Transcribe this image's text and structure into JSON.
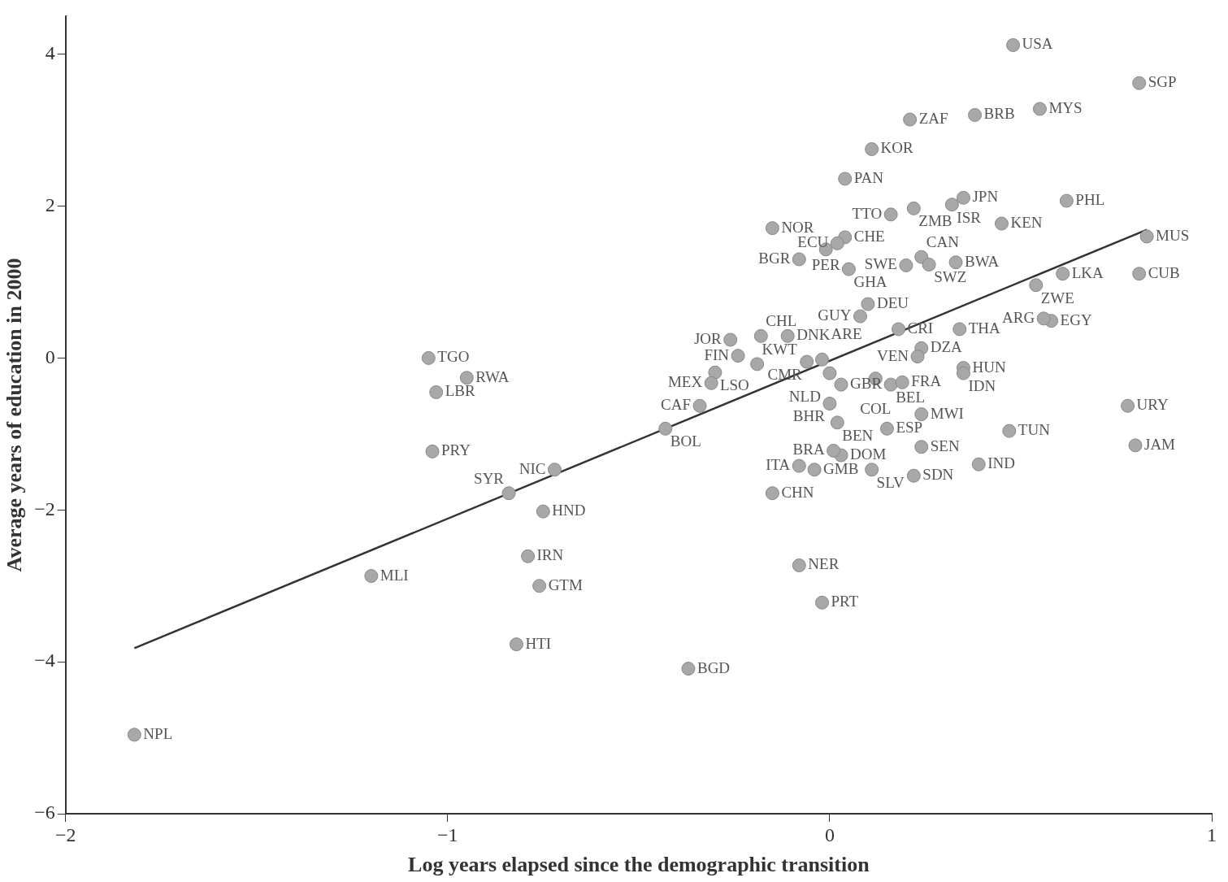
{
  "chart_data": {
    "type": "scatter",
    "xlabel": "Log years elapsed since the demographic transition",
    "ylabel": "Average years of education in 2000",
    "xlim": [
      -2,
      1
    ],
    "xticks": [
      -2,
      -1,
      0,
      1
    ],
    "ylim": [
      -6,
      4.5
    ],
    "yticks": [
      -6,
      -4,
      -2,
      0,
      2,
      4
    ],
    "grid": false,
    "legend": false,
    "marker": "circle",
    "series": [
      {
        "color": "#a8a8a8",
        "x": [
          0.48,
          0.81,
          0.21,
          0.38,
          0.55,
          0.11,
          0.04,
          0.32,
          0.35,
          0.16,
          0.22,
          0.62,
          0.45,
          -0.15,
          0.83,
          0.04,
          0.02,
          -0.01,
          -0.08,
          0.24,
          0.33,
          0.2,
          0.26,
          0.05,
          0.61,
          0.81,
          0.54,
          0.1,
          0.08,
          -0.11,
          0.58,
          0.56,
          -0.18,
          -0.26,
          0.18,
          0.34,
          -1.05,
          -0.06,
          -0.24,
          -0.19,
          0.24,
          0.23,
          0.35,
          -0.02,
          0.12,
          0.0,
          -0.3,
          -0.31,
          0.03,
          0.16,
          0.19,
          0.35,
          -0.34,
          -0.43,
          0.0,
          0.02,
          0.15,
          0.24,
          0.03,
          0.01,
          -0.08,
          -0.04,
          0.24,
          0.11,
          0.22,
          0.39,
          0.47,
          0.78,
          0.8,
          -0.15,
          -0.08,
          -0.02,
          -0.95,
          -1.03,
          -1.04,
          -0.72,
          -0.84,
          -0.75,
          -0.79,
          -1.2,
          -0.76,
          -0.82,
          -0.37,
          -1.82
        ],
        "values": [
          4.12,
          3.62,
          3.14,
          3.2,
          3.28,
          2.75,
          2.36,
          2.02,
          2.11,
          1.89,
          1.97,
          2.07,
          1.77,
          1.71,
          1.6,
          1.59,
          1.51,
          1.43,
          1.3,
          1.33,
          1.26,
          1.22,
          1.23,
          1.17,
          1.11,
          1.11,
          0.96,
          0.71,
          0.55,
          0.29,
          0.49,
          0.52,
          0.29,
          0.24,
          0.38,
          0.38,
          0.0,
          -0.05,
          0.03,
          -0.08,
          0.13,
          0.02,
          -0.13,
          -0.02,
          -0.27,
          -0.2,
          -0.19,
          -0.33,
          -0.35,
          -0.35,
          -0.32,
          -0.2,
          -0.63,
          -0.93,
          -0.6,
          -0.85,
          -0.93,
          -0.74,
          -1.28,
          -1.22,
          -1.42,
          -1.47,
          -1.17,
          -1.47,
          -1.55,
          -1.4,
          -0.96,
          -0.63,
          -1.15,
          -1.78,
          -2.73,
          -3.22,
          -0.26,
          -0.45,
          -1.23,
          -1.47,
          -1.78,
          -2.02,
          -2.61,
          -2.87,
          -3.0,
          -3.77,
          -4.09,
          -4.96
        ]
      },
      {
        "type": "line",
        "marker": "none",
        "color": "#333333",
        "x": [
          -1.82,
          0.83
        ],
        "values": [
          -3.82,
          1.69
        ]
      }
    ],
    "annotations": [
      {
        "text": "USA",
        "x": 0.48,
        "y": 4.12
      },
      {
        "text": "SGP",
        "x": 0.81,
        "y": 3.62
      },
      {
        "text": "ZAF",
        "x": 0.21,
        "y": 3.14
      },
      {
        "text": "BRB",
        "x": 0.38,
        "y": 3.2
      },
      {
        "text": "MYS",
        "x": 0.55,
        "y": 3.28
      },
      {
        "text": "KOR",
        "x": 0.11,
        "y": 2.75
      },
      {
        "text": "PAN",
        "x": 0.04,
        "y": 2.36
      },
      {
        "text": "ISR",
        "x": 0.32,
        "y": 2.02
      },
      {
        "text": "JPN",
        "x": 0.35,
        "y": 2.11
      },
      {
        "text": "TTO",
        "x": 0.16,
        "y": 1.89
      },
      {
        "text": "ZMB",
        "x": 0.22,
        "y": 1.97
      },
      {
        "text": "PHL",
        "x": 0.62,
        "y": 2.07
      },
      {
        "text": "KEN",
        "x": 0.45,
        "y": 1.77
      },
      {
        "text": "NOR",
        "x": -0.15,
        "y": 1.71
      },
      {
        "text": "MUS",
        "x": 0.83,
        "y": 1.6
      },
      {
        "text": "CHE",
        "x": 0.04,
        "y": 1.59
      },
      {
        "text": "ECU",
        "x": 0.02,
        "y": 1.51
      },
      {
        "text": "PER",
        "x": -0.01,
        "y": 1.43
      },
      {
        "text": "BGR",
        "x": -0.08,
        "y": 1.3
      },
      {
        "text": "CAN",
        "x": 0.24,
        "y": 1.33
      },
      {
        "text": "BWA",
        "x": 0.33,
        "y": 1.26
      },
      {
        "text": "SWE",
        "x": 0.2,
        "y": 1.22
      },
      {
        "text": "SWZ",
        "x": 0.26,
        "y": 1.23
      },
      {
        "text": "GHA",
        "x": 0.05,
        "y": 1.17
      },
      {
        "text": "LKA",
        "x": 0.61,
        "y": 1.11
      },
      {
        "text": "CUB",
        "x": 0.81,
        "y": 1.11
      },
      {
        "text": "ZWE",
        "x": 0.54,
        "y": 0.96
      },
      {
        "text": "DEU",
        "x": 0.1,
        "y": 0.71
      },
      {
        "text": "GUY",
        "x": 0.08,
        "y": 0.55
      },
      {
        "text": "DNK",
        "x": -0.11,
        "y": 0.29
      },
      {
        "text": "EGY",
        "x": 0.58,
        "y": 0.49
      },
      {
        "text": "ARG",
        "x": 0.56,
        "y": 0.52
      },
      {
        "text": "CHL",
        "x": -0.18,
        "y": 0.29
      },
      {
        "text": "JOR",
        "x": -0.26,
        "y": 0.24
      },
      {
        "text": "CRI",
        "x": 0.18,
        "y": 0.38
      },
      {
        "text": "THA",
        "x": 0.34,
        "y": 0.38
      },
      {
        "text": "TGO",
        "x": -1.05,
        "y": 0.0
      },
      {
        "text": "CMR",
        "x": -0.06,
        "y": -0.05
      },
      {
        "text": "FIN",
        "x": -0.24,
        "y": 0.03
      },
      {
        "text": "KWT",
        "x": -0.19,
        "y": -0.08
      },
      {
        "text": "DZA",
        "x": 0.24,
        "y": 0.13
      },
      {
        "text": "VEN",
        "x": 0.23,
        "y": 0.02
      },
      {
        "text": "HUN",
        "x": 0.35,
        "y": -0.13
      },
      {
        "text": "ARE",
        "x": -0.02,
        "y": -0.02
      },
      {
        "text": "COL",
        "x": 0.12,
        "y": -0.27
      },
      {
        "text": "NLD",
        "x": 0.0,
        "y": -0.2
      },
      {
        "text": "LSO",
        "x": -0.3,
        "y": -0.19
      },
      {
        "text": "MEX",
        "x": -0.31,
        "y": -0.33
      },
      {
        "text": "GBR",
        "x": 0.03,
        "y": -0.35
      },
      {
        "text": "BEL",
        "x": 0.16,
        "y": -0.35
      },
      {
        "text": "FRA",
        "x": 0.19,
        "y": -0.32
      },
      {
        "text": "IDN",
        "x": 0.35,
        "y": -0.2
      },
      {
        "text": "CAF",
        "x": -0.34,
        "y": -0.63
      },
      {
        "text": "BOL",
        "x": -0.43,
        "y": -0.93
      },
      {
        "text": "BHR",
        "x": 0.0,
        "y": -0.6
      },
      {
        "text": "BEN",
        "x": 0.02,
        "y": -0.85
      },
      {
        "text": "ESP",
        "x": 0.15,
        "y": -0.93
      },
      {
        "text": "MWI",
        "x": 0.24,
        "y": -0.74
      },
      {
        "text": "DOM",
        "x": 0.03,
        "y": -1.28
      },
      {
        "text": "BRA",
        "x": 0.01,
        "y": -1.22
      },
      {
        "text": "ITA",
        "x": -0.08,
        "y": -1.42
      },
      {
        "text": "GMB",
        "x": -0.04,
        "y": -1.47
      },
      {
        "text": "SEN",
        "x": 0.24,
        "y": -1.17
      },
      {
        "text": "SLV",
        "x": 0.11,
        "y": -1.47
      },
      {
        "text": "SDN",
        "x": 0.22,
        "y": -1.55
      },
      {
        "text": "IND",
        "x": 0.39,
        "y": -1.4
      },
      {
        "text": "TUN",
        "x": 0.47,
        "y": -0.96
      },
      {
        "text": "URY",
        "x": 0.78,
        "y": -0.63
      },
      {
        "text": "JAM",
        "x": 0.8,
        "y": -1.15
      },
      {
        "text": "CHN",
        "x": -0.15,
        "y": -1.78
      },
      {
        "text": "NER",
        "x": -0.08,
        "y": -2.73
      },
      {
        "text": "PRT",
        "x": -0.02,
        "y": -3.22
      },
      {
        "text": "RWA",
        "x": -0.95,
        "y": -0.26
      },
      {
        "text": "LBR",
        "x": -1.03,
        "y": -0.45
      },
      {
        "text": "PRY",
        "x": -1.04,
        "y": -1.23
      },
      {
        "text": "NIC",
        "x": -0.72,
        "y": -1.47
      },
      {
        "text": "SYR",
        "x": -0.84,
        "y": -1.78
      },
      {
        "text": "HND",
        "x": -0.75,
        "y": -2.02
      },
      {
        "text": "IRN",
        "x": -0.79,
        "y": -2.61
      },
      {
        "text": "MLI",
        "x": -1.2,
        "y": -2.87
      },
      {
        "text": "GTM",
        "x": -0.76,
        "y": -3.0
      },
      {
        "text": "HTI",
        "x": -0.82,
        "y": -3.77
      },
      {
        "text": "BGD",
        "x": -0.37,
        "y": -4.09
      },
      {
        "text": "NPL",
        "x": -1.82,
        "y": -4.96
      }
    ]
  }
}
